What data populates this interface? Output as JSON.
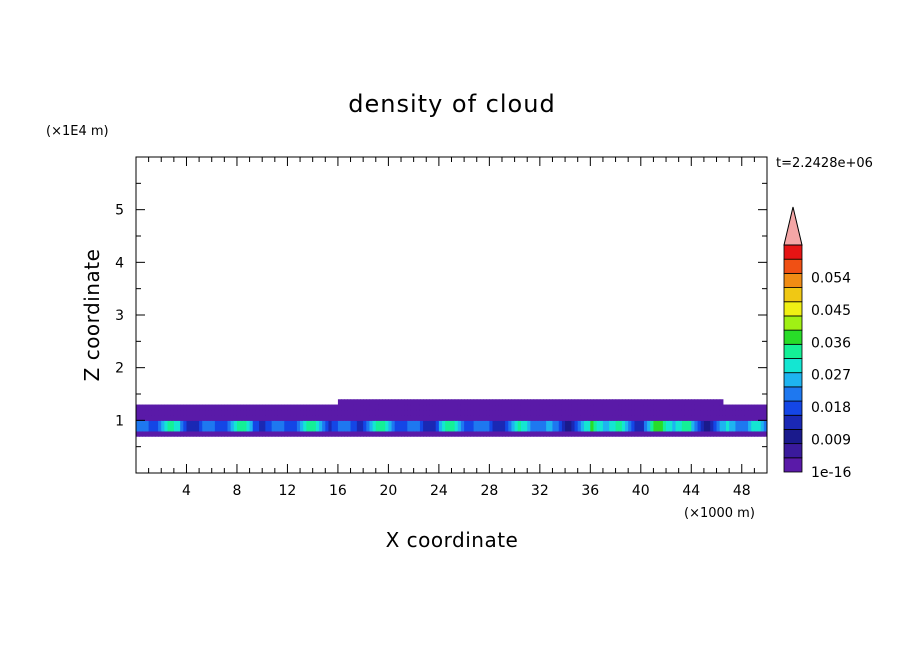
{
  "chart_data": {
    "type": "heatmap",
    "title": "density of cloud",
    "xlabel": "X coordinate",
    "ylabel": "Z coordinate",
    "x_unit": "(×1000 m)",
    "y_unit": "(×1E4 m)",
    "time_label": "t=2.2428e+06",
    "xlim": [
      0,
      50
    ],
    "ylim": [
      0,
      6
    ],
    "x_ticks": [
      "4",
      "8",
      "12",
      "16",
      "20",
      "24",
      "28",
      "32",
      "36",
      "40",
      "44",
      "48"
    ],
    "y_ticks": [
      "1",
      "2",
      "3",
      "4",
      "5"
    ],
    "colorbar": {
      "labels": [
        "1e-16",
        "0.009",
        "0.018",
        "0.027",
        "0.036",
        "0.045",
        "0.054"
      ],
      "label_values": [
        0,
        0.009,
        0.018,
        0.027,
        0.036,
        0.045,
        0.054
      ],
      "levels": [
        0,
        0.0045,
        0.009,
        0.0135,
        0.018,
        0.0225,
        0.027,
        0.0315,
        0.036,
        0.0405,
        0.045,
        0.0495,
        0.054,
        0.0585,
        0.063
      ],
      "colors": [
        "#5a1aa8",
        "#3a1a9c",
        "#1a1a8c",
        "#1a28b4",
        "#1446e6",
        "#1e78f0",
        "#1eb4f0",
        "#14e6d2",
        "#14f096",
        "#28dc28",
        "#a0f014",
        "#f0f014",
        "#f0c814",
        "#f08c14",
        "#f05014",
        "#e61414"
      ],
      "overflow_color": "#f4a6a6"
    },
    "cloud_layer": {
      "top_profile": {
        "x": [
          0,
          3,
          6,
          9,
          12,
          15,
          18,
          21,
          24,
          27,
          30,
          33,
          36,
          39,
          42,
          45,
          48,
          50
        ],
        "z": [
          1.33,
          1.3,
          1.27,
          1.27,
          1.3,
          1.32,
          1.4,
          1.43,
          1.43,
          1.41,
          1.38,
          1.35,
          1.4,
          1.42,
          1.4,
          1.36,
          1.34,
          1.33
        ]
      },
      "base_z": 0.72,
      "core_z": 0.9,
      "max_value": 0.058
    }
  }
}
